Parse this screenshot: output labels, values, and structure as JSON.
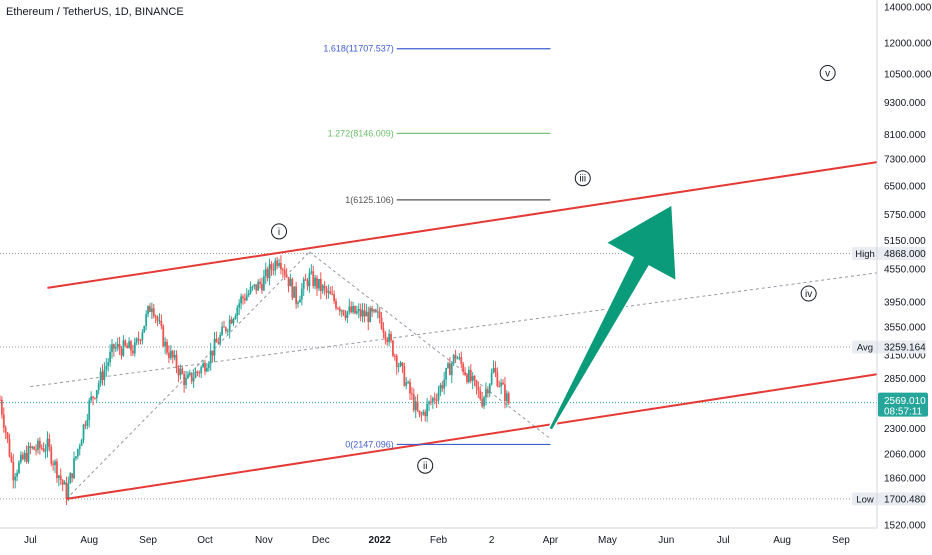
{
  "header": {
    "title": "Ethereum / TetherUS, 1D, BINANCE"
  },
  "chart_data": {
    "type": "candlestick",
    "scale": "log",
    "ylim": [
      1520,
      14000
    ],
    "y_ticks": [
      "14000.000",
      "12000.000",
      "10500.000",
      "9300.000",
      "8100.000",
      "7300.000",
      "6500.000",
      "5750.000",
      "5150.000",
      "4550.000",
      "3950.000",
      "3550.000",
      "3150.000",
      "2850.000",
      "2300.000",
      "2060.000",
      "1860.000",
      "1520.000"
    ],
    "x_ticks": [
      "Jul",
      "Aug",
      "Sep",
      "Oct",
      "Nov",
      "Dec",
      "2022",
      "Feb",
      "2",
      "Apr",
      "May",
      "Jun",
      "Jul",
      "Aug",
      "Sep"
    ],
    "x_tick_dates": [
      "2021-07-01",
      "2021-08-01",
      "2021-09-01",
      "2021-10-01",
      "2021-11-01",
      "2021-12-01",
      "2022-01-01",
      "2022-02-01",
      "2022-03-01",
      "2022-04-01",
      "2022-05-01",
      "2022-06-01",
      "2022-07-01",
      "2022-08-01",
      "2022-09-01"
    ],
    "x_domain": [
      "2021-06-15",
      "2022-09-20"
    ],
    "colors": {
      "up": "#26a69a",
      "down": "#ef5350",
      "channel": "#e53935",
      "arrow": "#0a9b7a",
      "fib_blue": "#3f5fcf",
      "fib_green": "#6abe6a",
      "fib_gray": "#555555"
    },
    "price_path": [
      [
        "2021-06-15",
        2600
      ],
      [
        "2021-06-22",
        1900
      ],
      [
        "2021-07-01",
        2100
      ],
      [
        "2021-07-10",
        2130
      ],
      [
        "2021-07-20",
        1740
      ],
      [
        "2021-08-01",
        2550
      ],
      [
        "2021-08-14",
        3250
      ],
      [
        "2021-08-25",
        3230
      ],
      [
        "2021-09-03",
        3950
      ],
      [
        "2021-09-10",
        3280
      ],
      [
        "2021-09-21",
        2800
      ],
      [
        "2021-09-30",
        3000
      ],
      [
        "2021-10-10",
        3450
      ],
      [
        "2021-10-20",
        4000
      ],
      [
        "2021-10-31",
        4300
      ],
      [
        "2021-11-09",
        4810
      ],
      [
        "2021-11-18",
        4000
      ],
      [
        "2021-11-25",
        4400
      ],
      [
        "2021-12-04",
        4100
      ],
      [
        "2021-12-14",
        3800
      ],
      [
        "2022-01-01",
        3700
      ],
      [
        "2022-01-10",
        3100
      ],
      [
        "2022-01-22",
        2400
      ],
      [
        "2022-02-01",
        2700
      ],
      [
        "2022-02-10",
        3150
      ],
      [
        "2022-02-24",
        2600
      ],
      [
        "2022-03-02",
        2950
      ],
      [
        "2022-03-10",
        2569
      ]
    ],
    "channel_lines": [
      {
        "from": [
          "2021-07-20",
          1700
        ],
        "to": [
          "2022-09-20",
          2900
        ]
      },
      {
        "from": [
          "2021-07-10",
          4200
        ],
        "to": [
          "2022-09-20",
          7200
        ]
      }
    ],
    "dashed_lines": [
      {
        "from": [
          "2021-07-20",
          1700
        ],
        "to": [
          "2021-11-25",
          4900
        ]
      },
      {
        "from": [
          "2021-11-25",
          4900
        ],
        "to": [
          "2022-04-01",
          2200
        ]
      },
      {
        "from": [
          "2021-07-01",
          2750
        ],
        "to": [
          "2022-09-20",
          4480
        ]
      }
    ],
    "fib_levels": [
      {
        "label": "1.618(11707.537)",
        "value": 11707.537,
        "color": "fib_blue"
      },
      {
        "label": "1.272(8146.009)",
        "value": 8146.009,
        "color": "fib_green"
      },
      {
        "label": "1(6125.106)",
        "value": 6125.106,
        "color": "fib_gray"
      },
      {
        "label": "0(2147.096)",
        "value": 2147.096,
        "color": "fib_blue"
      }
    ],
    "fib_span": [
      "2022-01-10",
      "2022-04-01"
    ],
    "wave_labels": [
      {
        "text": "i",
        "date": "2021-11-09",
        "price": 5350
      },
      {
        "text": "ii",
        "date": "2022-01-25",
        "price": 1960
      },
      {
        "text": "iii",
        "date": "2022-04-18",
        "price": 6720
      },
      {
        "text": "iv",
        "date": "2022-08-15",
        "price": 4100
      },
      {
        "text": "v",
        "date": "2022-08-25",
        "price": 10550
      }
    ],
    "arrow": {
      "from": [
        "2022-04-01",
        2290
      ],
      "to": [
        "2022-06-04",
        6000
      ]
    },
    "markers": [
      {
        "label": "High",
        "value": "4868.000",
        "price": 4868
      },
      {
        "label": "Avg",
        "value": "3259.164",
        "price": 3259.164
      },
      {
        "label": "Low",
        "value": "1700.480",
        "price": 1700.48
      }
    ],
    "current_price": {
      "value": "2569.010",
      "countdown": "08:57:11",
      "price": 2569.01
    }
  }
}
